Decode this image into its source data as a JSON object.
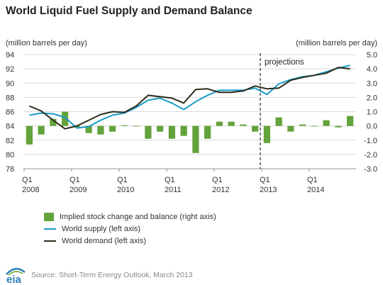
{
  "title": "World Liquid Fuel Supply and Demand Balance",
  "left_unit": "(million barrels per day)",
  "right_unit": "(million barrels per day)",
  "colors": {
    "supply": "#1a9cc9",
    "demand": "#2b2b1a",
    "stock": "#63a33b",
    "grid": "#d9d9d9",
    "axis_text": "#333333",
    "projection_line": "#444444"
  },
  "legend": [
    {
      "label": "Implied stock change and balance (right axis)",
      "kind": "bar",
      "color": "#63a33b"
    },
    {
      "label": "World supply (left axis)",
      "kind": "line",
      "color": "#1a9cc9"
    },
    {
      "label": "World demand (left axis)",
      "kind": "line",
      "color": "#2b2b1a"
    }
  ],
  "source": "Source: Short-Term Energy Outlook, March 2013",
  "logo_text": "eia",
  "chart_data": {
    "type": "bar+line",
    "title": "World Liquid Fuel Supply and Demand Balance",
    "left_axis": {
      "label": "(million barrels per day)",
      "ylim": [
        78,
        94
      ],
      "ticks": [
        "94",
        "92",
        "90",
        "88",
        "86",
        "84",
        "82",
        "80",
        "78"
      ]
    },
    "right_axis": {
      "label": "(million barrels per day)",
      "ylim": [
        -3.0,
        5.0
      ],
      "ticks": [
        "5.0",
        "4.0",
        "3.0",
        "2.0",
        "1.0",
        "0.0",
        "-1.0",
        "-2.0",
        "-3.0"
      ]
    },
    "x_ticks": [
      {
        "quarter": "Q1",
        "year": "2008"
      },
      {
        "quarter": "Q1",
        "year": "2009"
      },
      {
        "quarter": "Q1",
        "year": "2010"
      },
      {
        "quarter": "Q1",
        "year": "2011"
      },
      {
        "quarter": "Q1",
        "year": "2012"
      },
      {
        "quarter": "Q1",
        "year": "2013"
      },
      {
        "quarter": "Q1",
        "year": "2014"
      }
    ],
    "quarters": [
      "2008Q1",
      "2008Q2",
      "2008Q3",
      "2008Q4",
      "2009Q1",
      "2009Q2",
      "2009Q3",
      "2009Q4",
      "2010Q1",
      "2010Q2",
      "2010Q3",
      "2010Q4",
      "2011Q1",
      "2011Q2",
      "2011Q3",
      "2011Q4",
      "2012Q1",
      "2012Q2",
      "2012Q3",
      "2012Q4",
      "2013Q1",
      "2013Q2",
      "2013Q3",
      "2013Q4",
      "2014Q1",
      "2014Q2",
      "2014Q3",
      "2014Q4"
    ],
    "projection_start": "2013Q1",
    "projection_label": "projections",
    "series": [
      {
        "name": "World supply (left axis)",
        "axis": "left",
        "kind": "line",
        "values": [
          85.5,
          85.8,
          85.7,
          85.2,
          83.7,
          83.9,
          84.8,
          85.5,
          85.8,
          86.6,
          87.6,
          87.9,
          87.2,
          86.3,
          87.4,
          88.3,
          89.0,
          89.0,
          89.0,
          89.3,
          88.4,
          89.9,
          90.5,
          90.9,
          91.1,
          91.6,
          92.1,
          92.5
        ]
      },
      {
        "name": "World demand (left axis)",
        "axis": "left",
        "kind": "line",
        "values": [
          86.8,
          86.1,
          84.8,
          83.6,
          84.0,
          84.8,
          85.6,
          86.0,
          85.9,
          86.8,
          88.3,
          88.1,
          87.9,
          87.2,
          89.1,
          89.2,
          88.7,
          88.7,
          88.9,
          89.6,
          89.2,
          89.3,
          90.4,
          90.8,
          91.1,
          91.4,
          92.2,
          92.0
        ]
      },
      {
        "name": "Implied stock change and balance (right axis)",
        "axis": "right",
        "kind": "bar",
        "values": [
          -1.3,
          -0.6,
          0.5,
          1.0,
          -0.1,
          -0.5,
          -0.6,
          -0.4,
          0.05,
          0.0,
          -0.9,
          -0.4,
          -0.9,
          -0.7,
          -1.9,
          -0.9,
          0.3,
          0.3,
          0.1,
          -0.4,
          -1.2,
          0.6,
          -0.4,
          0.1,
          0.0,
          0.4,
          -0.1,
          0.7
        ]
      }
    ]
  }
}
